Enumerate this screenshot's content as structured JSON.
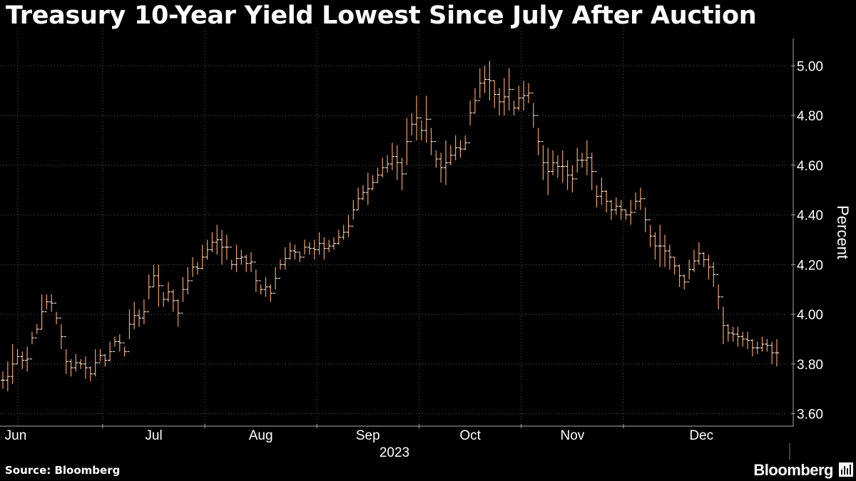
{
  "chart_data": {
    "type": "ohlc",
    "title": "Treasury 10-Year Yield Lowest Since July After Auction",
    "ylabel": "Percent",
    "xlabel": "2023",
    "ylim": [
      3.55,
      5.15
    ],
    "y_ticks": [
      "3.60",
      "3.80",
      "4.00",
      "4.20",
      "4.40",
      "4.60",
      "4.80",
      "5.00"
    ],
    "months": [
      "Jun",
      "Jul",
      "Aug",
      "Sep",
      "Oct",
      "Nov",
      "Dec"
    ],
    "month_starts": [
      0,
      21,
      42,
      65,
      86,
      107,
      128
    ],
    "bars": [
      [
        3.77,
        3.7
      ],
      [
        3.81,
        3.69
      ],
      [
        3.88,
        3.72
      ],
      [
        3.86,
        3.8
      ],
      [
        3.85,
        3.78
      ],
      [
        3.87,
        3.77
      ],
      [
        3.93,
        3.88
      ],
      [
        3.96,
        3.92
      ],
      [
        4.08,
        3.94
      ],
      [
        4.08,
        4.02
      ],
      [
        4.08,
        4.01
      ],
      [
        4.01,
        3.96
      ],
      [
        3.96,
        3.86
      ],
      [
        3.86,
        3.76
      ],
      [
        3.82,
        3.75
      ],
      [
        3.84,
        3.77
      ],
      [
        3.82,
        3.78
      ],
      [
        3.83,
        3.74
      ],
      [
        3.79,
        3.73
      ],
      [
        3.86,
        3.75
      ],
      [
        3.86,
        3.81
      ],
      [
        3.84,
        3.79
      ],
      [
        3.89,
        3.81
      ],
      [
        3.91,
        3.87
      ],
      [
        3.92,
        3.85
      ],
      [
        3.87,
        3.83
      ],
      [
        4.02,
        3.9
      ],
      [
        4.05,
        3.94
      ],
      [
        4.02,
        3.95
      ],
      [
        4.06,
        3.96
      ],
      [
        4.16,
        4.06
      ],
      [
        4.2,
        4.11
      ],
      [
        4.2,
        4.03
      ],
      [
        4.09,
        4.03
      ],
      [
        4.13,
        4.05
      ],
      [
        4.1,
        4.01
      ],
      [
        4.06,
        3.95
      ],
      [
        4.15,
        4.05
      ],
      [
        4.19,
        4.08
      ],
      [
        4.23,
        4.15
      ],
      [
        4.21,
        4.16
      ],
      [
        4.28,
        4.18
      ],
      [
        4.3,
        4.22
      ],
      [
        4.33,
        4.25
      ],
      [
        4.36,
        4.24
      ],
      [
        4.34,
        4.2
      ],
      [
        4.32,
        4.22
      ],
      [
        4.22,
        4.18
      ],
      [
        4.28,
        4.17
      ],
      [
        4.26,
        4.2
      ],
      [
        4.24,
        4.17
      ],
      [
        4.25,
        4.17
      ],
      [
        4.18,
        4.09
      ],
      [
        4.12,
        4.08
      ],
      [
        4.15,
        4.07
      ],
      [
        4.12,
        4.05
      ],
      [
        4.19,
        4.1
      ],
      [
        4.22,
        4.18
      ],
      [
        4.27,
        4.18
      ],
      [
        4.29,
        4.22
      ],
      [
        4.28,
        4.22
      ],
      [
        4.25,
        4.21
      ],
      [
        4.3,
        4.24
      ],
      [
        4.29,
        4.24
      ],
      [
        4.3,
        4.22
      ],
      [
        4.33,
        4.24
      ],
      [
        4.31,
        4.22
      ],
      [
        4.3,
        4.25
      ],
      [
        4.31,
        4.26
      ],
      [
        4.34,
        4.28
      ],
      [
        4.36,
        4.3
      ],
      [
        4.4,
        4.31
      ],
      [
        4.46,
        4.38
      ],
      [
        4.51,
        4.42
      ],
      [
        4.52,
        4.46
      ],
      [
        4.57,
        4.44
      ],
      [
        4.56,
        4.5
      ],
      [
        4.59,
        4.53
      ],
      [
        4.63,
        4.55
      ],
      [
        4.64,
        4.57
      ],
      [
        4.69,
        4.58
      ],
      [
        4.68,
        4.54
      ],
      [
        4.63,
        4.5
      ],
      [
        4.79,
        4.6
      ],
      [
        4.81,
        4.72
      ],
      [
        4.88,
        4.7
      ],
      [
        4.78,
        4.7
      ],
      [
        4.88,
        4.69
      ],
      [
        4.75,
        4.64
      ],
      [
        4.66,
        4.59
      ],
      [
        4.65,
        4.53
      ],
      [
        4.7,
        4.52
      ],
      [
        4.68,
        4.6
      ],
      [
        4.72,
        4.62
      ],
      [
        4.7,
        4.63
      ],
      [
        4.72,
        4.66
      ],
      [
        4.86,
        4.76
      ],
      [
        4.91,
        4.81
      ],
      [
        4.99,
        4.87
      ],
      [
        5.0,
        4.89
      ],
      [
        5.02,
        4.86
      ],
      [
        4.94,
        4.83
      ],
      [
        4.91,
        4.8
      ],
      [
        4.95,
        4.8
      ],
      [
        4.99,
        4.82
      ],
      [
        4.86,
        4.8
      ],
      [
        4.92,
        4.82
      ],
      [
        4.94,
        4.82
      ],
      [
        4.93,
        4.85
      ],
      [
        4.85,
        4.75
      ],
      [
        4.75,
        4.64
      ],
      [
        4.68,
        4.54
      ],
      [
        4.67,
        4.48
      ],
      [
        4.66,
        4.56
      ],
      [
        4.64,
        4.55
      ],
      [
        4.66,
        4.53
      ],
      [
        4.62,
        4.5
      ],
      [
        4.6,
        4.49
      ],
      [
        4.67,
        4.57
      ],
      [
        4.65,
        4.59
      ],
      [
        4.7,
        4.56
      ],
      [
        4.65,
        4.5
      ],
      [
        4.52,
        4.43
      ],
      [
        4.55,
        4.44
      ],
      [
        4.5,
        4.41
      ],
      [
        4.46,
        4.38
      ],
      [
        4.47,
        4.4
      ],
      [
        4.46,
        4.38
      ],
      [
        4.42,
        4.38
      ],
      [
        4.46,
        4.36
      ],
      [
        4.49,
        4.42
      ],
      [
        4.51,
        4.42
      ],
      [
        4.43,
        4.33
      ],
      [
        4.36,
        4.27
      ],
      [
        4.33,
        4.22
      ],
      [
        4.36,
        4.19
      ],
      [
        4.32,
        4.19
      ],
      [
        4.28,
        4.18
      ],
      [
        4.23,
        4.16
      ],
      [
        4.2,
        4.11
      ],
      [
        4.16,
        4.1
      ],
      [
        4.22,
        4.14
      ],
      [
        4.26,
        4.17
      ],
      [
        4.29,
        4.2
      ],
      [
        4.25,
        4.19
      ],
      [
        4.24,
        4.14
      ],
      [
        4.21,
        4.11
      ],
      [
        4.12,
        4.02
      ],
      [
        4.03,
        3.88
      ],
      [
        3.96,
        3.89
      ],
      [
        3.95,
        3.89
      ],
      [
        3.95,
        3.87
      ],
      [
        3.93,
        3.87
      ],
      [
        3.93,
        3.86
      ],
      [
        3.9,
        3.83
      ],
      [
        3.89,
        3.84
      ],
      [
        3.91,
        3.85
      ],
      [
        3.9,
        3.85
      ],
      [
        3.89,
        3.8
      ],
      [
        3.9,
        3.79
      ]
    ]
  },
  "footer": {
    "source": "Source: Bloomberg",
    "brand": "Bloomberg"
  }
}
